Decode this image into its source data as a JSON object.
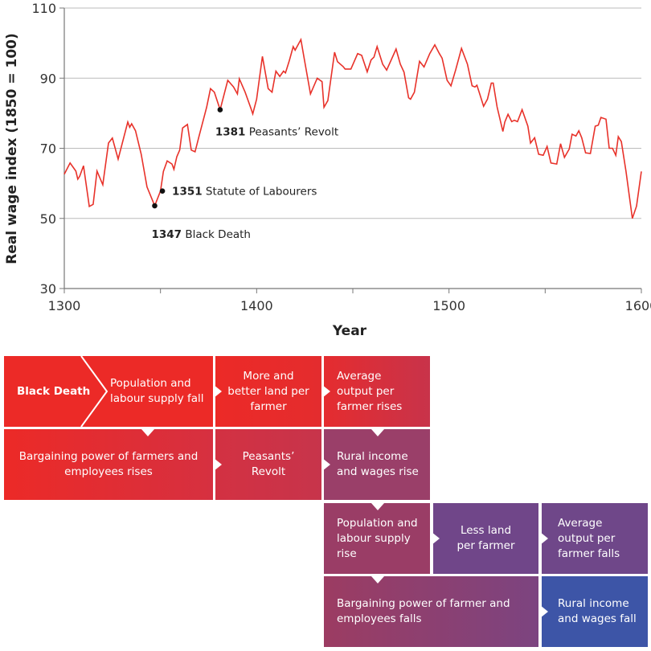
{
  "chart_data": {
    "type": "line",
    "xlabel": "Year",
    "ylabel": "Real wage index (1850 = 100)",
    "xlim": [
      1300,
      1600
    ],
    "ylim": [
      30,
      110
    ],
    "xticks": [
      1300,
      1400,
      1500,
      1600
    ],
    "yticks": [
      30,
      50,
      70,
      90,
      110
    ],
    "grid": "horizontal",
    "line_color": "#e8322a",
    "series": [
      {
        "x": [
          1300,
          1303,
          1306,
          1307,
          1308,
          1310,
          1313,
          1315,
          1317,
          1320,
          1323,
          1325,
          1328,
          1333,
          1334,
          1335,
          1337,
          1340,
          1343,
          1347,
          1350,
          1351.5,
          1353.5,
          1356,
          1357,
          1358.5,
          1360,
          1361.5,
          1364,
          1366,
          1368,
          1370,
          1374,
          1376,
          1378,
          1381,
          1385,
          1388,
          1390,
          1391,
          1394,
          1397,
          1398,
          1400,
          1403,
          1406,
          1408,
          1410,
          1412,
          1414,
          1415,
          1417,
          1419,
          1420,
          1423,
          1424.6,
          1428,
          1431.5,
          1434,
          1435,
          1437,
          1440.5,
          1442,
          1445,
          1446,
          1449,
          1452.5,
          1454.6,
          1457.5,
          1459.5,
          1461,
          1462.6,
          1465.5,
          1467.6,
          1472.5,
          1474.7,
          1476.6,
          1479,
          1480,
          1482,
          1484.7,
          1487,
          1490,
          1492.6,
          1495,
          1496.4,
          1499,
          1501,
          1503.5,
          1506.5,
          1509.6,
          1512,
          1513.5,
          1514.5,
          1516,
          1518,
          1520,
          1522,
          1523,
          1525,
          1528,
          1529,
          1530.7,
          1532.6,
          1534,
          1535.6,
          1538,
          1541,
          1542.4,
          1544.5,
          1546.6,
          1549,
          1551,
          1553,
          1556,
          1558,
          1560,
          1562.5,
          1564,
          1566,
          1567.5,
          1569,
          1571,
          1573.5,
          1576,
          1577.6,
          1579,
          1581.6,
          1583.3,
          1585,
          1586.7,
          1588,
          1589.6,
          1592,
          1595.3,
          1597.5,
          1600
        ],
        "y": [
          62.6,
          65.8,
          63.5,
          61.2,
          62,
          65,
          53.4,
          54,
          63.5,
          59.6,
          71.5,
          72.9,
          66.9,
          77.5,
          76,
          77,
          75,
          68.3,
          59,
          53.6,
          57.8,
          63.4,
          66.4,
          65.5,
          64,
          67.6,
          69.5,
          75.8,
          76.8,
          69.5,
          69,
          73.3,
          81.7,
          87,
          86,
          81,
          89.4,
          87.5,
          85.5,
          89.8,
          86,
          81.4,
          79.8,
          84,
          96.2,
          87,
          86,
          92,
          90.5,
          92,
          91.5,
          95,
          99,
          98,
          101,
          96,
          85.5,
          90,
          89,
          81.7,
          83.6,
          97.4,
          94.7,
          93.3,
          92.6,
          92.6,
          97,
          96.5,
          91.8,
          95.2,
          96,
          99,
          94,
          92.3,
          98.3,
          94,
          91.7,
          84.4,
          84,
          86,
          94.8,
          93.2,
          97,
          99.5,
          97,
          95.7,
          89.4,
          87.8,
          92.4,
          98.5,
          94,
          87.8,
          87.5,
          88,
          85.4,
          82,
          84,
          88.6,
          88.6,
          81.8,
          74.8,
          77.5,
          79.7,
          77.6,
          78,
          77.6,
          81,
          76.3,
          71.5,
          73,
          68.3,
          68,
          70.5,
          65.8,
          65.5,
          71.3,
          67.4,
          69.8,
          74,
          73.5,
          75,
          73,
          68.7,
          68.5,
          76.3,
          76.6,
          78.8,
          78.3,
          70,
          70,
          68,
          73.3,
          71.9,
          63.4,
          50,
          53.5,
          63.4
        ]
      }
    ],
    "annotations": [
      {
        "year": "1347",
        "text": "Black Death",
        "x": 1347,
        "y": 53.6
      },
      {
        "year": "1351",
        "text": "Statute of Labourers",
        "x": 1351,
        "y": 57.8
      },
      {
        "year": "1381",
        "text": "Peasants’ Revolt",
        "x": 1381,
        "y": 81
      }
    ]
  },
  "diagram": {
    "black_death": "Black Death",
    "pop_fall": "Population and labour supply fall",
    "more_land": "More and better land per farmer",
    "output_rises": "Average output per farmer rises",
    "bargain_rises": "Bargaining power of farmers and employees rises",
    "revolt": "Peasants’ Revolt",
    "wages_rise": "Rural income and wages rise",
    "pop_rise": "Population and labour supply rise",
    "less_land": "Less land per farmer",
    "output_falls": "Average output per farmer falls",
    "bargain_falls": "Bargaining power of farmer and employees falls",
    "wages_fall": "Rural income and wages fall"
  }
}
